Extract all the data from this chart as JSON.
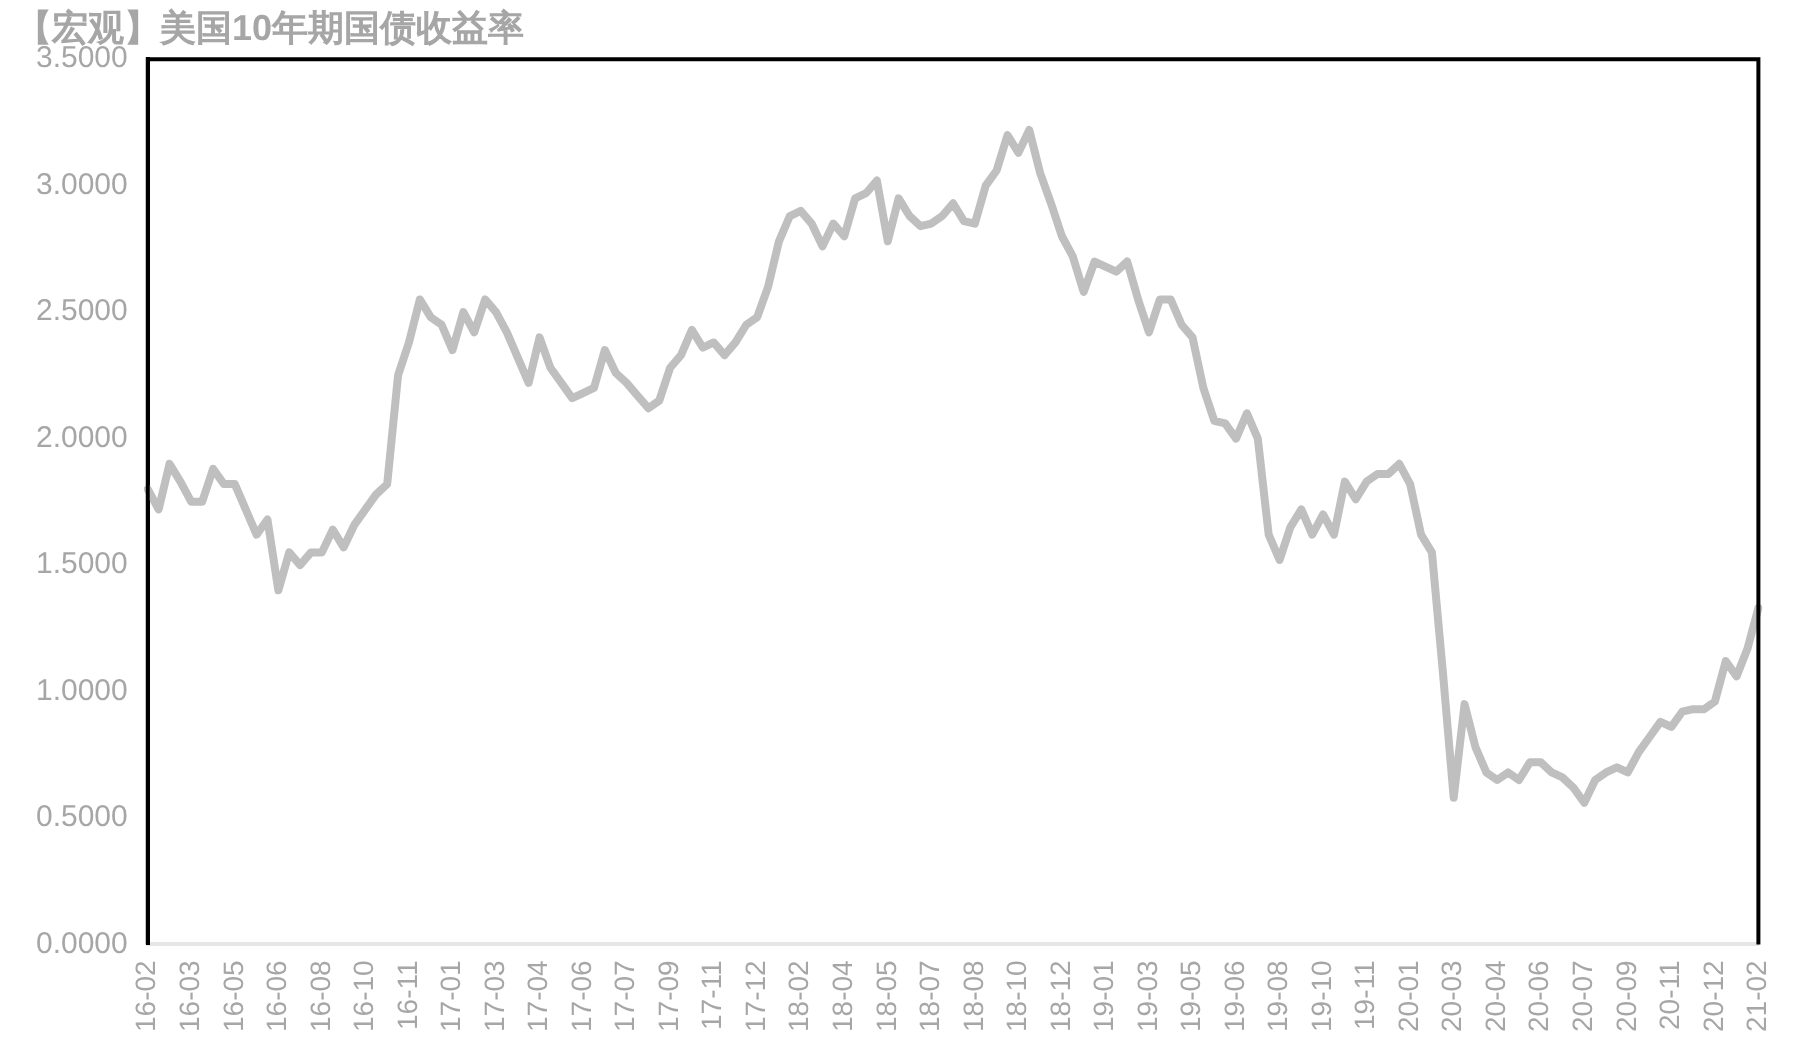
{
  "chart_data": {
    "type": "line",
    "title": "【宏观】美国10年期国债收益率",
    "categories": [
      "16-02",
      null,
      null,
      null,
      "16-03",
      null,
      null,
      null,
      "16-05",
      null,
      null,
      null,
      "16-06",
      null,
      null,
      null,
      "16-08",
      null,
      null,
      null,
      "16-10",
      null,
      null,
      null,
      "16-11",
      null,
      null,
      null,
      "17-01",
      null,
      null,
      null,
      "17-03",
      null,
      null,
      null,
      "17-04",
      null,
      null,
      null,
      "17-06",
      null,
      null,
      null,
      "17-07",
      null,
      null,
      null,
      "17-09",
      null,
      null,
      null,
      "17-11",
      null,
      null,
      null,
      "17-12",
      null,
      null,
      null,
      "18-02",
      null,
      null,
      null,
      "18-04",
      null,
      null,
      null,
      "18-05",
      null,
      null,
      null,
      "18-07",
      null,
      null,
      null,
      "18-08",
      null,
      null,
      null,
      "18-10",
      null,
      null,
      null,
      "18-12",
      null,
      null,
      null,
      "19-01",
      null,
      null,
      null,
      "19-03",
      null,
      null,
      null,
      "19-05",
      null,
      null,
      null,
      "19-06",
      null,
      null,
      null,
      "19-08",
      null,
      null,
      null,
      "19-10",
      null,
      null,
      null,
      "19-11",
      null,
      null,
      null,
      "20-01",
      null,
      null,
      null,
      "20-03",
      null,
      null,
      null,
      "20-04",
      null,
      null,
      null,
      "20-06",
      null,
      null,
      null,
      "20-07",
      null,
      null,
      null,
      "20-09",
      null,
      null,
      null,
      "20-11",
      null,
      null,
      null,
      "20-12",
      null,
      null,
      null,
      "21-02"
    ],
    "series": [
      {
        "color": "#bfbfbf",
        "values": [
          1.8,
          1.72,
          1.9,
          1.83,
          1.75,
          1.75,
          1.88,
          1.82,
          1.82,
          1.72,
          1.62,
          1.68,
          1.4,
          1.55,
          1.5,
          1.55,
          1.55,
          1.64,
          1.57,
          1.66,
          1.72,
          1.78,
          1.82,
          2.25,
          2.38,
          2.55,
          2.48,
          2.45,
          2.35,
          2.5,
          2.42,
          2.55,
          2.5,
          2.42,
          2.32,
          2.22,
          2.4,
          2.28,
          2.22,
          2.16,
          2.18,
          2.2,
          2.35,
          2.26,
          2.22,
          2.17,
          2.12,
          2.15,
          2.28,
          2.33,
          2.43,
          2.36,
          2.38,
          2.33,
          2.38,
          2.45,
          2.48,
          2.6,
          2.78,
          2.88,
          2.9,
          2.85,
          2.76,
          2.85,
          2.8,
          2.95,
          2.97,
          3.02,
          2.78,
          2.95,
          2.88,
          2.84,
          2.85,
          2.88,
          2.93,
          2.86,
          2.85,
          3.0,
          3.06,
          3.2,
          3.13,
          3.22,
          3.05,
          2.93,
          2.8,
          2.72,
          2.58,
          2.7,
          2.68,
          2.66,
          2.7,
          2.55,
          2.42,
          2.55,
          2.55,
          2.45,
          2.4,
          2.2,
          2.07,
          2.06,
          2.0,
          2.1,
          2.0,
          1.62,
          1.52,
          1.65,
          1.72,
          1.62,
          1.7,
          1.62,
          1.83,
          1.76,
          1.83,
          1.86,
          1.86,
          1.9,
          1.82,
          1.62,
          1.55,
          1.08,
          0.58,
          0.95,
          0.78,
          0.68,
          0.65,
          0.68,
          0.65,
          0.72,
          0.72,
          0.68,
          0.66,
          0.62,
          0.56,
          0.65,
          0.68,
          0.7,
          0.68,
          0.76,
          0.82,
          0.88,
          0.86,
          0.92,
          0.93,
          0.93,
          0.96,
          1.12,
          1.06,
          1.17,
          1.33
        ]
      }
    ],
    "ylim": [
      0,
      3.5
    ],
    "yticks": [
      {
        "value": 0,
        "label": "0.0000"
      },
      {
        "value": 0.5,
        "label": "0.5000"
      },
      {
        "value": 1,
        "label": "1.0000"
      },
      {
        "value": 1.5,
        "label": "1.5000"
      },
      {
        "value": 2,
        "label": "2.0000"
      },
      {
        "value": 2.5,
        "label": "2.5000"
      },
      {
        "value": 3,
        "label": "3.0000"
      },
      {
        "value": 3.5,
        "label": "3.5000"
      }
    ],
    "grid": false,
    "legend": false,
    "marker": "none",
    "line_style": "solid"
  }
}
